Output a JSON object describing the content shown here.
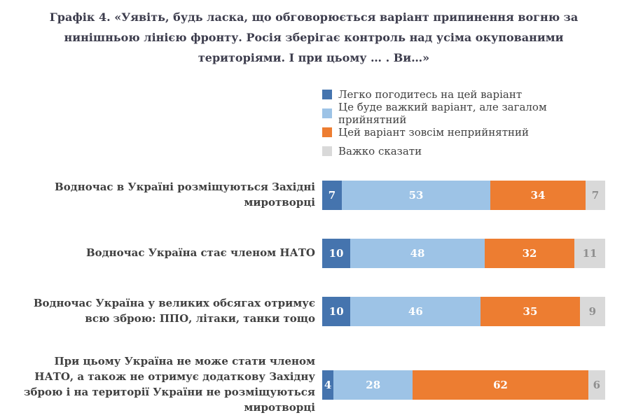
{
  "chart_data": {
    "type": "bar",
    "orientation": "horizontal",
    "stacked": true,
    "legend_position": "top-right",
    "xlim": [
      0,
      100
    ],
    "title": "Графік 4. «Уявіть, будь ласка, що обговорюється варіант припинення вогню за нинішньою лінією фронту. Росія зберігає контроль над усіма окупованими територіями. І при цьому … . Ви…»",
    "categories": [
      "Водночас в Україні розміщуються Західні миротворці",
      "Водночас Україна стає членом НАТО",
      "Водночас Україна у великих обсягах отримує всю зброю: ППО, літаки, танки тощо",
      "При цьому Україна не може стати членом НАТО, а також не отримує додаткову Західну зброю і на території України не розміщуються миротворці"
    ],
    "series": [
      {
        "name": "Легко погодитесь на цей варіант",
        "color": "#4574ae",
        "label_color": "#ffffff",
        "values": [
          7,
          10,
          10,
          4
        ]
      },
      {
        "name": "Це буде важкий варіант, але загалом прийнятний",
        "color": "#9dc3e6",
        "label_color": "#ffffff",
        "values": [
          53,
          48,
          46,
          28
        ]
      },
      {
        "name": "Цей варіант зовсім неприйнятний",
        "color": "#ed7d31",
        "label_color": "#ffffff",
        "values": [
          34,
          32,
          35,
          62
        ]
      },
      {
        "name": "Важко сказати",
        "color": "#d9d9d9",
        "label_color": "#8f8f8f",
        "values": [
          7,
          11,
          9,
          6
        ]
      }
    ]
  }
}
